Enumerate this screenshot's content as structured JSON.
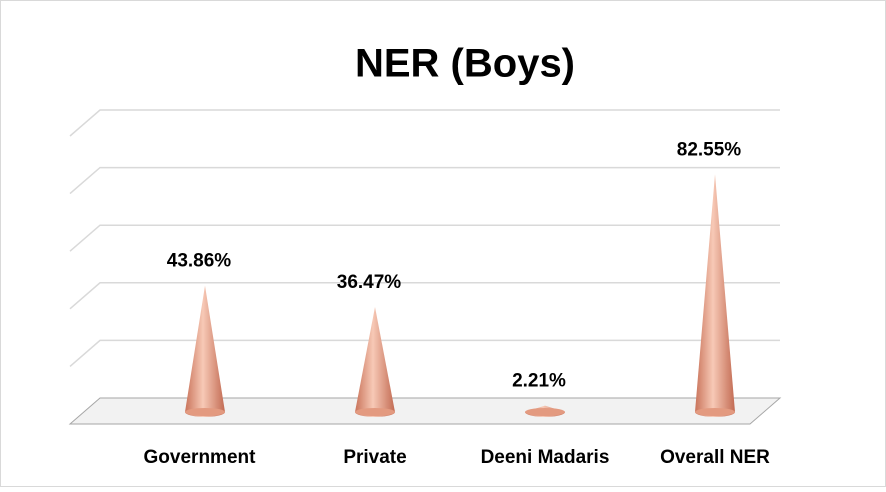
{
  "chart_data": {
    "type": "cone",
    "title": "NER (Boys)",
    "categories": [
      "Government",
      "Private",
      "Deeni Madaris",
      "Overall NER"
    ],
    "values": [
      43.86,
      36.47,
      2.21,
      82.55
    ],
    "value_labels": [
      "43.86%",
      "36.47%",
      "2.21%",
      "82.55%"
    ],
    "color": "#e8a48a",
    "ylim": [
      0,
      100
    ],
    "yticks": [
      0,
      20,
      40,
      60,
      80,
      100
    ],
    "grid": true
  }
}
